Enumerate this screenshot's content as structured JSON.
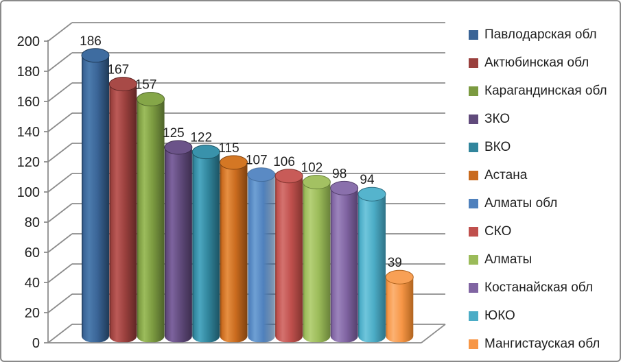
{
  "window": {
    "background": "#FFFFFF",
    "frame_border_color": "#8A8A8A"
  },
  "chart_data": {
    "type": "bar",
    "subtype": "3d-cylinder",
    "title": "",
    "xlabel": "",
    "ylabel": "",
    "ylim": [
      0,
      200
    ],
    "ytick_interval": 20,
    "yticks": [
      0,
      20,
      40,
      60,
      80,
      100,
      120,
      140,
      160,
      180,
      200
    ],
    "grid": true,
    "legend_position": "right",
    "grid_color": "#8C8C8C",
    "text_color": "#1F1F1F",
    "categories": [
      "Павлодарская обл",
      "Актюбинская обл",
      "Карагандинская обл",
      "ЗКО",
      "ВКО",
      "Астана",
      "Алматы обл",
      "СКО",
      "Алматы",
      "Костанайская обл",
      "ЮКО",
      "Мангистауская обл"
    ],
    "values": [
      186,
      167,
      157,
      125,
      122,
      115,
      107,
      106,
      102,
      98,
      94,
      39
    ],
    "series": [
      {
        "name": "Павлодарская обл",
        "value": 186,
        "color": "#3A6496",
        "light": "#4C7CAE",
        "dark": "#1F3A57",
        "top": "#3E6CA0"
      },
      {
        "name": "Актюбинская обл",
        "value": 167,
        "color": "#9A403D",
        "light": "#BC5A57",
        "dark": "#5F2625",
        "top": "#A84A47"
      },
      {
        "name": "Карагандинская обл",
        "value": 157,
        "color": "#7B9A40",
        "light": "#9CBC5C",
        "dark": "#4E632A",
        "top": "#85A648"
      },
      {
        "name": "ЗКО",
        "value": 125,
        "color": "#604A7B",
        "light": "#7D639E",
        "dark": "#3C2D4E",
        "top": "#6B5389"
      },
      {
        "name": "ВКО",
        "value": 122,
        "color": "#31859C",
        "light": "#4BA7C0",
        "dark": "#1C5363",
        "top": "#3992AB"
      },
      {
        "name": "Астана",
        "value": 115,
        "color": "#C96A1E",
        "light": "#E68F41",
        "dark": "#7E4210",
        "top": "#D47724"
      },
      {
        "name": "Алматы обл",
        "value": 107,
        "color": "#4F81BD",
        "light": "#6FA0D4",
        "dark": "#32578093",
        "top": "#5A8AC4"
      },
      {
        "name": "СКО",
        "value": 106,
        "color": "#C0504D",
        "light": "#D4726F",
        "dark": "#82342F",
        "top": "#C85B58"
      },
      {
        "name": "Алматы",
        "value": 102,
        "color": "#9BBB59",
        "light": "#B5D077",
        "dark": "#69823A",
        "top": "#A3C162"
      },
      {
        "name": "Костанайская обл",
        "value": 98,
        "color": "#8064A2",
        "light": "#9C84BC",
        "dark": "#533F6B",
        "top": "#8A70AC"
      },
      {
        "name": "ЮКО",
        "value": 94,
        "color": "#4BACC6",
        "light": "#6FC5DC",
        "dark": "#2F7286",
        "top": "#55B4CD"
      },
      {
        "name": "Мангистауская обл",
        "value": 39,
        "color": "#F79646",
        "light": "#FBB273",
        "dark": "#B0641F",
        "top": "#F8A055"
      }
    ]
  }
}
